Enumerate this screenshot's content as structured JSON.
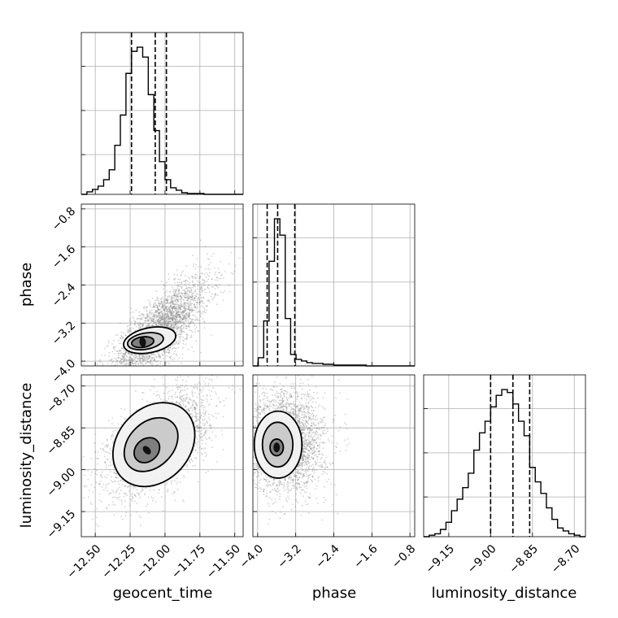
{
  "chart_data": {
    "type": "corner",
    "parameters": [
      "geocent_time",
      "phase",
      "luminosity_distance"
    ],
    "axis_labels": {
      "geocent_time": "geocent_time",
      "phase": "phase",
      "luminosity_distance": "luminosity_distance"
    },
    "ranges": {
      "geocent_time": [
        -12.6,
        -11.44
      ],
      "phase": [
        -4.1,
        -0.7
      ],
      "luminosity_distance": [
        -9.24,
        -8.66
      ]
    },
    "ticks": {
      "geocent_time": {
        "values": [
          -12.5,
          -12.25,
          -12.0,
          -11.75,
          -11.5
        ],
        "labels": [
          "−12.50",
          "−12.25",
          "−12.00",
          "−11.75",
          "−11.50"
        ]
      },
      "phase": {
        "values": [
          -4.0,
          -3.2,
          -2.4,
          -1.6,
          -0.8
        ],
        "labels": [
          "−4.0",
          "−3.2",
          "−2.4",
          "−1.6",
          "−0.8"
        ]
      },
      "luminosity_distance": {
        "values": [
          -9.15,
          -9.0,
          -8.85,
          -8.7
        ],
        "labels": [
          "−9.15",
          "−9.00",
          "−8.85",
          "−8.70"
        ]
      }
    },
    "grid": true,
    "histograms": {
      "geocent_time": {
        "bin_edges": [
          -12.6,
          -12.56,
          -12.52,
          -12.48,
          -12.44,
          -12.4,
          -12.36,
          -12.32,
          -12.28,
          -12.24,
          -12.2,
          -12.16,
          -12.12,
          -12.08,
          -12.04,
          -12.0,
          -11.96,
          -11.92,
          -11.88,
          -11.84,
          -11.8,
          -11.76,
          -11.72,
          -11.68,
          -11.64,
          -11.6,
          -11.56,
          -11.52,
          -11.48,
          -11.44
        ],
        "counts": [
          0,
          3,
          6,
          10,
          18,
          30,
          60,
          97,
          148,
          175,
          180,
          168,
          122,
          78,
          40,
          18,
          8,
          5,
          2,
          1,
          1,
          1,
          0,
          0,
          0,
          0,
          0,
          0,
          0
        ],
        "quantiles": [
          -12.24,
          -12.07,
          -11.99
        ]
      },
      "phase": {
        "bin_edges": [
          -4.1,
          -3.987,
          -3.873,
          -3.76,
          -3.647,
          -3.533,
          -3.42,
          -3.307,
          -3.193,
          -3.08,
          -2.967,
          -2.853,
          -2.74,
          -2.627,
          -2.513,
          -2.4,
          -2.287,
          -2.173,
          -2.06,
          -1.947,
          -1.833,
          -1.72,
          -1.607,
          -1.493,
          -1.38,
          -1.267,
          -1.153,
          -1.04,
          -0.927,
          -0.813,
          -0.7
        ],
        "counts": [
          0,
          10,
          55,
          128,
          180,
          160,
          58,
          14,
          8,
          6,
          4,
          3,
          3,
          2,
          2,
          1,
          1,
          1,
          1,
          1,
          1,
          0,
          0,
          0,
          0,
          0,
          0,
          0,
          0,
          0
        ],
        "quantiles": [
          -3.8,
          -3.58,
          -3.22
        ]
      },
      "luminosity_distance": {
        "bin_edges": [
          -9.24,
          -9.22,
          -9.2,
          -9.18,
          -9.16,
          -9.14,
          -9.12,
          -9.1,
          -9.08,
          -9.06,
          -9.04,
          -9.02,
          -9.0,
          -8.98,
          -8.96,
          -8.94,
          -8.92,
          -8.9,
          -8.88,
          -8.86,
          -8.84,
          -8.82,
          -8.8,
          -8.78,
          -8.76,
          -8.74,
          -8.72,
          -8.7,
          -8.68,
          -8.66
        ],
        "counts": [
          0,
          1,
          2,
          5,
          10,
          18,
          26,
          34,
          44,
          60,
          72,
          80,
          90,
          98,
          102,
          100,
          92,
          80,
          70,
          48,
          38,
          30,
          20,
          12,
          6,
          4,
          2,
          1,
          0
        ],
        "quantiles": [
          -9.0,
          -8.92,
          -8.86
        ]
      }
    },
    "pairs": [
      {
        "x": "geocent_time",
        "y": "phase",
        "scatter": {
          "center": [
            -12.04,
            -3.35
          ],
          "sd": [
            0.18,
            0.55
          ],
          "corr": 0.78,
          "n": 3000,
          "color": "#7f7f7f"
        },
        "contours": [
          {
            "center": [
              -12.11,
              -3.56
            ],
            "radii": [
              0.19,
              0.26
            ],
            "angle_deg": 12
          },
          {
            "center": [
              -12.14,
              -3.58
            ],
            "radii": [
              0.13,
              0.17
            ],
            "angle_deg": 10
          },
          {
            "center": [
              -12.16,
              -3.6
            ],
            "radii": [
              0.08,
              0.11
            ],
            "angle_deg": 8
          }
        ]
      },
      {
        "x": "geocent_time",
        "y": "luminosity_distance",
        "scatter": {
          "center": [
            -12.05,
            -8.9
          ],
          "sd": [
            0.18,
            0.09
          ],
          "corr": 0.55,
          "n": 3000,
          "color": "#7f7f7f"
        },
        "contours": [
          {
            "center": [
              -12.08,
              -8.91
            ],
            "radii": [
              0.33,
              0.13
            ],
            "angle_deg": 48
          },
          {
            "center": [
              -12.1,
              -8.91
            ],
            "radii": [
              0.22,
              0.08
            ],
            "angle_deg": 45
          },
          {
            "center": [
              -12.13,
              -8.93
            ],
            "radii": [
              0.1,
              0.04
            ],
            "angle_deg": 42
          }
        ]
      },
      {
        "x": "phase",
        "y": "luminosity_distance",
        "scatter": {
          "center": [
            -3.4,
            -8.9
          ],
          "sd": [
            0.4,
            0.09
          ],
          "corr": 0.0,
          "n": 3000,
          "color": "#7f7f7f"
        },
        "contours": [
          {
            "center": [
              -3.57,
              -8.91
            ],
            "radii": [
              0.5,
              0.12
            ],
            "angle_deg": 0
          },
          {
            "center": [
              -3.58,
              -8.91
            ],
            "radii": [
              0.32,
              0.08
            ],
            "angle_deg": 0
          },
          {
            "center": [
              -3.6,
              -8.92
            ],
            "radii": [
              0.14,
              0.03
            ],
            "angle_deg": 0
          }
        ]
      }
    ]
  }
}
